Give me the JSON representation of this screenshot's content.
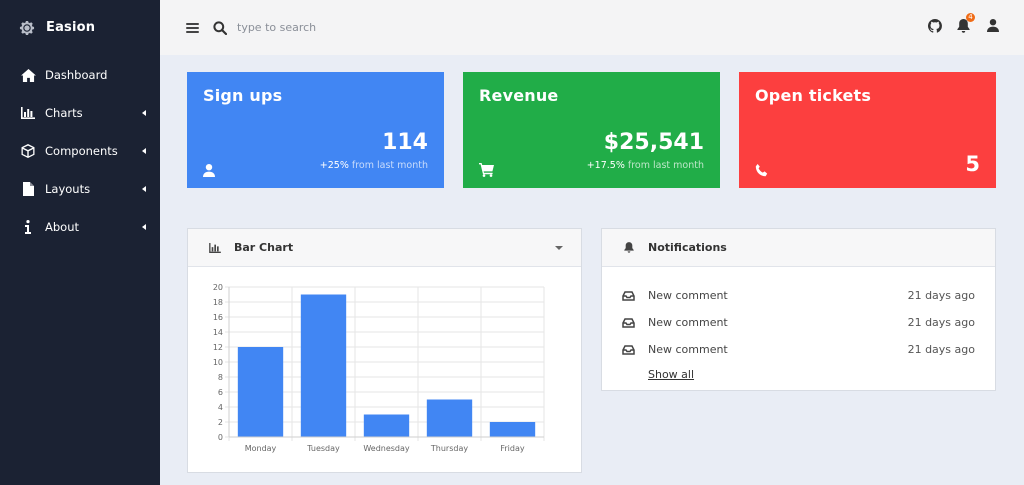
{
  "app": {
    "title": "Easion"
  },
  "sidebar": {
    "items": [
      {
        "label": "Dashboard",
        "icon": "home-icon",
        "has_submenu": false
      },
      {
        "label": "Charts",
        "icon": "bar-chart-icon",
        "has_submenu": true
      },
      {
        "label": "Components",
        "icon": "cube-icon",
        "has_submenu": true
      },
      {
        "label": "Layouts",
        "icon": "file-icon",
        "has_submenu": true
      },
      {
        "label": "About",
        "icon": "info-icon",
        "has_submenu": true
      }
    ]
  },
  "topbar": {
    "search_placeholder": "type to search",
    "notification_count": "4"
  },
  "cards": [
    {
      "title": "Sign ups",
      "value": "114",
      "change": "+25%",
      "change_text": " from last month",
      "icon": "user-icon",
      "color": "#4186f3"
    },
    {
      "title": "Revenue",
      "value": "$25,541",
      "change": "+17.5%",
      "change_text": " from last month",
      "icon": "cart-icon",
      "color": "#21ad48"
    },
    {
      "title": "Open tickets",
      "value": "5",
      "icon": "phone-icon",
      "color": "#fc3f3f"
    }
  ],
  "bar_panel": {
    "title": "Bar Chart"
  },
  "chart_data": {
    "type": "bar",
    "categories": [
      "Monday",
      "Tuesday",
      "Wednesday",
      "Thursday",
      "Friday"
    ],
    "values": [
      12,
      19,
      3,
      5,
      2
    ],
    "ylim": [
      0,
      20
    ],
    "yticks": [
      0,
      2,
      4,
      6,
      8,
      10,
      12,
      14,
      16,
      18,
      20
    ],
    "grid": true,
    "bar_color": "#4186f3",
    "title": "",
    "xlabel": "",
    "ylabel": ""
  },
  "notifications": {
    "title": "Notifications",
    "items": [
      {
        "text": "New comment",
        "time": "21 days ago"
      },
      {
        "text": "New comment",
        "time": "21 days ago"
      },
      {
        "text": "New comment",
        "time": "21 days ago"
      }
    ],
    "show_all": "Show all"
  }
}
